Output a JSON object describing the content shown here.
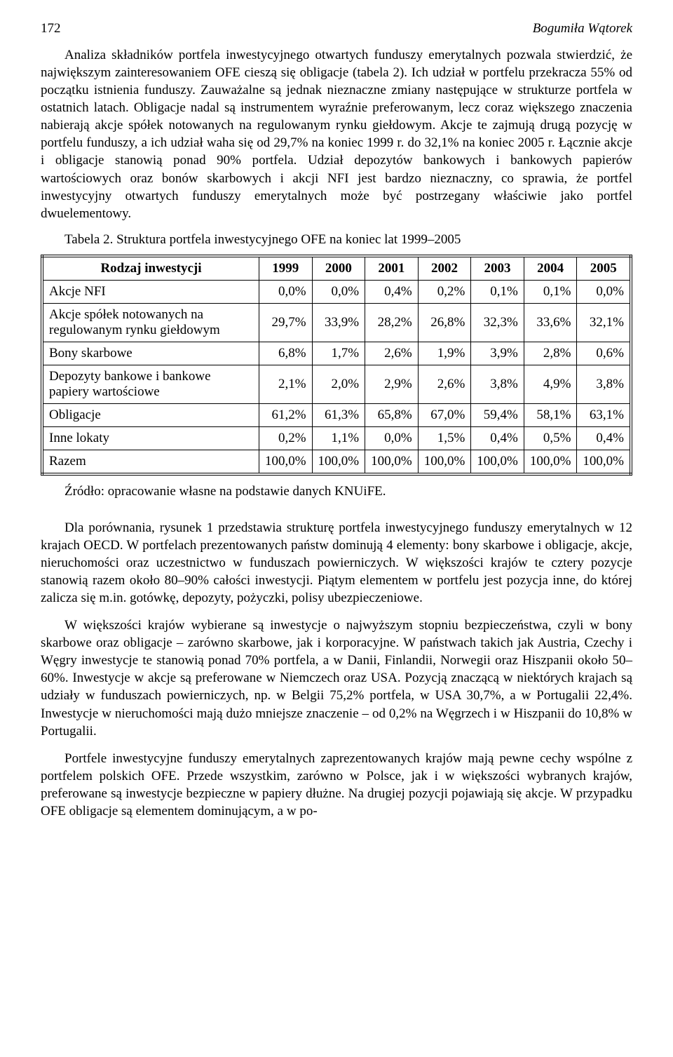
{
  "header": {
    "page_number": "172",
    "author": "Bogumiła Wątorek"
  },
  "para1": "Analiza składników portfela inwestycyjnego otwartych funduszy emerytalnych pozwala stwierdzić, że największym zainteresowaniem OFE cieszą się obligacje (tabela 2). Ich udział w portfelu przekracza 55% od początku istnienia funduszy. Zauważalne są jednak nieznaczne zmiany następujące w strukturze portfela w ostatnich latach. Obligacje nadal są instrumentem wyraźnie preferowanym, lecz coraz większego znaczenia nabierają akcje spółek notowanych na regulowanym rynku giełdowym. Akcje te zajmują drugą pozycję w portfelu funduszy, a ich udział waha się od 29,7% na koniec 1999 r. do 32,1% na koniec 2005 r. Łącznie akcje i obligacje stanowią ponad 90% portfela. Udział depozytów bankowych i bankowych papierów wartościowych oraz bonów skarbowych i akcji NFI jest bardzo nieznaczny, co sprawia, że portfel inwestycyjny otwartych funduszy emerytalnych może być postrzegany właściwie jako portfel dwuelementowy.",
  "table": {
    "caption": "Tabela  2. Struktura portfela inwestycyjnego OFE na koniec lat 1999–2005",
    "col_header": "Rodzaj inwestycji",
    "years": [
      "1999",
      "2000",
      "2001",
      "2002",
      "2003",
      "2004",
      "2005"
    ],
    "rows": [
      {
        "label": "Akcje NFI",
        "vals": [
          "0,0%",
          "0,0%",
          "0,4%",
          "0,2%",
          "0,1%",
          "0,1%",
          "0,0%"
        ]
      },
      {
        "label": "Akcje spółek notowanych na regulowanym rynku giełdowym",
        "vals": [
          "29,7%",
          "33,9%",
          "28,2%",
          "26,8%",
          "32,3%",
          "33,6%",
          "32,1%"
        ]
      },
      {
        "label": "Bony skarbowe",
        "vals": [
          "6,8%",
          "1,7%",
          "2,6%",
          "1,9%",
          "3,9%",
          "2,8%",
          "0,6%"
        ]
      },
      {
        "label": "Depozyty bankowe i bankowe papiery wartościowe",
        "vals": [
          "2,1%",
          "2,0%",
          "2,9%",
          "2,6%",
          "3,8%",
          "4,9%",
          "3,8%"
        ]
      },
      {
        "label": "Obligacje",
        "vals": [
          "61,2%",
          "61,3%",
          "65,8%",
          "67,0%",
          "59,4%",
          "58,1%",
          "63,1%"
        ]
      },
      {
        "label": "Inne lokaty",
        "vals": [
          "0,2%",
          "1,1%",
          "0,0%",
          "1,5%",
          "0,4%",
          "0,5%",
          "0,4%"
        ]
      },
      {
        "label": "Razem",
        "vals": [
          "100,0%",
          "100,0%",
          "100,0%",
          "100,0%",
          "100,0%",
          "100,0%",
          "100,0%"
        ]
      }
    ],
    "source": "Źródło: opracowanie własne na podstawie danych KNUiFE."
  },
  "para2": "Dla porównania, rysunek 1 przedstawia strukturę portfela inwestycyjnego funduszy emerytalnych w 12 krajach OECD. W portfelach prezentowanych państw dominują 4 elementy: bony skarbowe i obligacje, akcje, nieruchomości oraz uczestnictwo w funduszach powierniczych. W większości krajów te cztery pozycje stanowią razem około 80–90% całości inwestycji. Piątym elementem w portfelu jest pozycja inne, do której zalicza się m.in. gotówkę, depozyty, pożyczki, polisy ubezpieczeniowe.",
  "para3": "W większości krajów wybierane są inwestycje o najwyższym stopniu bezpieczeństwa, czyli w bony skarbowe oraz obligacje – zarówno skarbowe, jak i korporacyjne. W państwach takich jak Austria, Czechy i Węgry inwestycje te stanowią ponad 70% portfela, a w Danii, Finlandii, Norwegii oraz Hiszpanii około 50–60%. Inwestycje w akcje są preferowane w Niemczech oraz USA. Pozycją znaczącą w niektórych krajach są udziały w funduszach powierniczych, np. w Belgii 75,2% portfela, w USA 30,7%, a w Portugalii 22,4%. Inwestycje w nieruchomości mają dużo mniejsze znaczenie – od 0,2% na Węgrzech i w Hiszpanii do 10,8% w Portugalii.",
  "para4": "Portfele inwestycyjne funduszy emerytalnych zaprezentowanych krajów mają pewne cechy wspólne z portfelem polskich OFE. Przede wszystkim, zarówno w Polsce, jak i w większości wybranych krajów, preferowane są inwestycje bezpieczne w papiery dłużne. Na drugiej pozycji pojawiają się akcje. W przypadku OFE obligacje są elementem dominującym, a w po-"
}
